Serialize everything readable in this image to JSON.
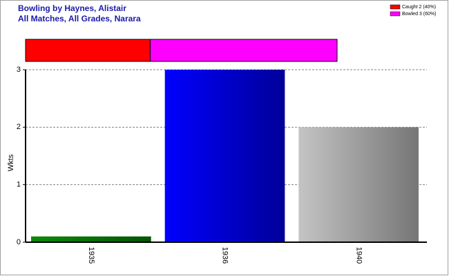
{
  "chart_data": {
    "type": "bar",
    "title": "Bowling by Haynes, Alistair",
    "subtitle": "All Matches, All Grades, Narara",
    "y_label": "Wkts",
    "categories": [
      "1935",
      "1936",
      "1940"
    ],
    "values": [
      0.1,
      3,
      2
    ],
    "colors": [
      "#0a8a0a",
      "#0000ff",
      "#c4c4c4"
    ],
    "ylim": [
      0,
      3
    ],
    "yticks": [
      0,
      1,
      2,
      3
    ],
    "grid": true,
    "legend": "top-right",
    "breakdown": {
      "type": "stacked-bar",
      "series": [
        {
          "name": "Caught 2 (40%)",
          "color": "#ff0000",
          "values": [
            2
          ]
        },
        {
          "name": "Bowled 3 (60%)",
          "color": "#ff00ff",
          "values": [
            3
          ]
        }
      ]
    }
  }
}
